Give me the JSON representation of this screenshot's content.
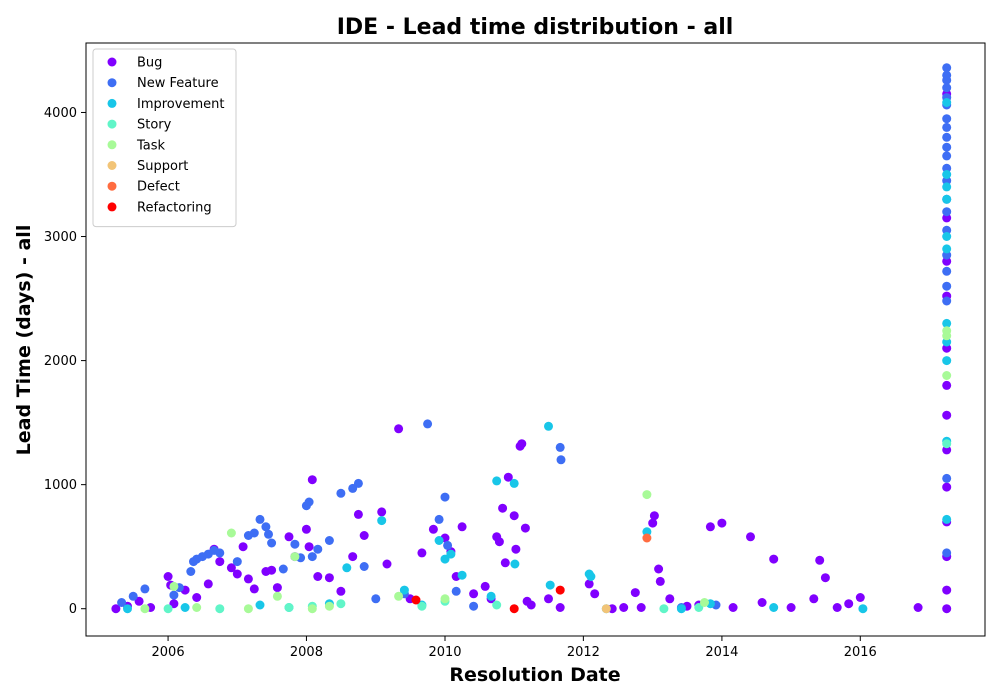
{
  "chart_data": {
    "type": "scatter",
    "title": "IDE - Lead time distribution - all",
    "xlabel": "Resolution Date",
    "ylabel": "Lead Time (days) - all",
    "xlim": [
      "2004-10-25",
      "2017-10-20"
    ],
    "ylim": [
      -220,
      4560
    ],
    "x_ticks": [
      "2006-01-01",
      "2008-01-01",
      "2010-01-01",
      "2012-01-01",
      "2014-01-01",
      "2016-01-01"
    ],
    "x_tick_labels": [
      "2006",
      "2008",
      "2010",
      "2012",
      "2014",
      "2016"
    ],
    "y_ticks": [
      0,
      1000,
      2000,
      3000,
      4000
    ],
    "y_tick_labels": [
      "0",
      "1000",
      "2000",
      "3000",
      "4000"
    ],
    "grid": false,
    "legend_position": "top-left",
    "series": [
      {
        "name": "Bug",
        "color": "#8000ff",
        "points": [
          [
            "2005-04-01",
            0
          ],
          [
            "2005-06-01",
            20
          ],
          [
            "2005-08-01",
            60
          ],
          [
            "2005-10-01",
            10
          ],
          [
            "2006-01-01",
            260
          ],
          [
            "2006-01-15",
            190
          ],
          [
            "2006-02-01",
            40
          ],
          [
            "2006-04-01",
            150
          ],
          [
            "2006-06-01",
            90
          ],
          [
            "2006-08-01",
            200
          ],
          [
            "2006-09-01",
            480
          ],
          [
            "2006-10-01",
            380
          ],
          [
            "2006-12-01",
            330
          ],
          [
            "2007-01-01",
            280
          ],
          [
            "2007-02-01",
            500
          ],
          [
            "2007-03-01",
            240
          ],
          [
            "2007-04-01",
            160
          ],
          [
            "2007-06-01",
            300
          ],
          [
            "2007-07-01",
            310
          ],
          [
            "2007-08-01",
            170
          ],
          [
            "2007-10-01",
            580
          ],
          [
            "2007-11-01",
            420
          ],
          [
            "2008-01-01",
            640
          ],
          [
            "2008-01-15",
            500
          ],
          [
            "2008-02-01",
            1040
          ],
          [
            "2008-03-01",
            260
          ],
          [
            "2008-05-01",
            250
          ],
          [
            "2008-07-01",
            140
          ],
          [
            "2008-09-01",
            420
          ],
          [
            "2008-10-01",
            760
          ],
          [
            "2008-11-01",
            590
          ],
          [
            "2009-02-01",
            780
          ],
          [
            "2009-03-01",
            360
          ],
          [
            "2009-05-01",
            1450
          ],
          [
            "2009-07-01",
            80
          ],
          [
            "2009-09-01",
            450
          ],
          [
            "2009-11-01",
            640
          ],
          [
            "2010-01-01",
            570
          ],
          [
            "2010-02-01",
            460
          ],
          [
            "2010-03-01",
            260
          ],
          [
            "2010-04-01",
            660
          ],
          [
            "2010-06-01",
            120
          ],
          [
            "2010-08-01",
            180
          ],
          [
            "2010-09-01",
            80
          ],
          [
            "2010-10-01",
            580
          ],
          [
            "2010-10-15",
            540
          ],
          [
            "2010-11-01",
            810
          ],
          [
            "2010-11-15",
            370
          ],
          [
            "2010-12-01",
            1060
          ],
          [
            "2011-01-01",
            750
          ],
          [
            "2011-01-10",
            480
          ],
          [
            "2011-02-01",
            1310
          ],
          [
            "2011-02-10",
            1330
          ],
          [
            "2011-03-01",
            650
          ],
          [
            "2011-03-10",
            60
          ],
          [
            "2011-04-01",
            30
          ],
          [
            "2011-07-01",
            80
          ],
          [
            "2011-09-01",
            10
          ],
          [
            "2012-02-01",
            200
          ],
          [
            "2012-03-01",
            120
          ],
          [
            "2012-06-01",
            0
          ],
          [
            "2012-08-01",
            10
          ],
          [
            "2012-10-01",
            130
          ],
          [
            "2012-11-01",
            10
          ],
          [
            "2013-01-01",
            690
          ],
          [
            "2013-01-10",
            750
          ],
          [
            "2013-02-01",
            320
          ],
          [
            "2013-02-10",
            220
          ],
          [
            "2013-04-01",
            80
          ],
          [
            "2013-07-01",
            20
          ],
          [
            "2013-09-01",
            30
          ],
          [
            "2013-11-01",
            660
          ],
          [
            "2014-01-01",
            690
          ],
          [
            "2014-03-01",
            10
          ],
          [
            "2014-06-01",
            580
          ],
          [
            "2014-08-01",
            50
          ],
          [
            "2014-10-01",
            400
          ],
          [
            "2015-01-01",
            10
          ],
          [
            "2015-05-01",
            80
          ],
          [
            "2015-06-01",
            390
          ],
          [
            "2015-07-01",
            250
          ],
          [
            "2015-09-01",
            10
          ],
          [
            "2015-11-01",
            40
          ],
          [
            "2016-01-01",
            90
          ],
          [
            "2016-11-01",
            10
          ],
          [
            "2017-04-01",
            0
          ],
          [
            "2017-04-01",
            150
          ],
          [
            "2017-04-01",
            420
          ],
          [
            "2017-04-01",
            700
          ],
          [
            "2017-04-01",
            980
          ],
          [
            "2017-04-01",
            1280
          ],
          [
            "2017-04-01",
            1560
          ],
          [
            "2017-04-01",
            1800
          ],
          [
            "2017-04-01",
            2100
          ],
          [
            "2017-04-01",
            2520
          ],
          [
            "2017-04-01",
            2800
          ],
          [
            "2017-04-01",
            3150
          ],
          [
            "2017-04-01",
            4150
          ]
        ]
      },
      {
        "name": "New Feature",
        "color": "#3e6ef4",
        "points": [
          [
            "2005-05-01",
            50
          ],
          [
            "2005-07-01",
            100
          ],
          [
            "2005-09-01",
            160
          ],
          [
            "2006-02-01",
            110
          ],
          [
            "2006-03-01",
            170
          ],
          [
            "2006-05-01",
            300
          ],
          [
            "2006-05-15",
            380
          ],
          [
            "2006-06-01",
            400
          ],
          [
            "2006-07-01",
            420
          ],
          [
            "2006-08-01",
            440
          ],
          [
            "2006-09-01",
            470
          ],
          [
            "2006-10-01",
            450
          ],
          [
            "2007-01-01",
            380
          ],
          [
            "2007-03-01",
            590
          ],
          [
            "2007-04-01",
            610
          ],
          [
            "2007-05-01",
            720
          ],
          [
            "2007-06-01",
            660
          ],
          [
            "2007-06-15",
            600
          ],
          [
            "2007-07-01",
            530
          ],
          [
            "2007-09-01",
            320
          ],
          [
            "2007-11-01",
            520
          ],
          [
            "2007-12-01",
            410
          ],
          [
            "2008-01-01",
            830
          ],
          [
            "2008-01-15",
            860
          ],
          [
            "2008-02-01",
            420
          ],
          [
            "2008-03-01",
            480
          ],
          [
            "2008-05-01",
            550
          ],
          [
            "2008-07-01",
            930
          ],
          [
            "2008-09-01",
            970
          ],
          [
            "2008-10-01",
            1010
          ],
          [
            "2008-11-01",
            340
          ],
          [
            "2009-01-01",
            80
          ],
          [
            "2009-06-01",
            120
          ],
          [
            "2009-10-01",
            1490
          ],
          [
            "2009-12-01",
            720
          ],
          [
            "2010-01-01",
            900
          ],
          [
            "2010-01-15",
            510
          ],
          [
            "2010-03-01",
            140
          ],
          [
            "2010-06-01",
            20
          ],
          [
            "2011-09-01",
            1300
          ],
          [
            "2011-09-05",
            1200
          ],
          [
            "2013-06-01",
            10
          ],
          [
            "2013-12-01",
            30
          ],
          [
            "2017-04-01",
            450
          ],
          [
            "2017-04-01",
            1050
          ],
          [
            "2017-04-01",
            2480
          ],
          [
            "2017-04-01",
            2600
          ],
          [
            "2017-04-01",
            2720
          ],
          [
            "2017-04-01",
            2850
          ],
          [
            "2017-04-01",
            3050
          ],
          [
            "2017-04-01",
            3200
          ],
          [
            "2017-04-01",
            3300
          ],
          [
            "2017-04-01",
            3450
          ],
          [
            "2017-04-01",
            3550
          ],
          [
            "2017-04-01",
            3650
          ],
          [
            "2017-04-01",
            3720
          ],
          [
            "2017-04-01",
            3800
          ],
          [
            "2017-04-01",
            3880
          ],
          [
            "2017-04-01",
            3950
          ],
          [
            "2017-04-01",
            4060
          ],
          [
            "2017-04-01",
            4120
          ],
          [
            "2017-04-01",
            4200
          ],
          [
            "2017-04-01",
            4260
          ],
          [
            "2017-04-01",
            4300
          ],
          [
            "2017-04-01",
            4360
          ]
        ]
      },
      {
        "name": "Improvement",
        "color": "#18c6e8",
        "points": [
          [
            "2005-06-01",
            0
          ],
          [
            "2006-04-01",
            10
          ],
          [
            "2007-05-01",
            30
          ],
          [
            "2007-10-01",
            10
          ],
          [
            "2008-05-01",
            40
          ],
          [
            "2008-08-01",
            330
          ],
          [
            "2009-02-01",
            710
          ],
          [
            "2009-06-01",
            150
          ],
          [
            "2009-09-01",
            30
          ],
          [
            "2009-12-01",
            550
          ],
          [
            "2010-01-01",
            400
          ],
          [
            "2010-02-01",
            440
          ],
          [
            "2010-04-01",
            270
          ],
          [
            "2010-09-01",
            100
          ],
          [
            "2010-10-01",
            1030
          ],
          [
            "2011-01-01",
            1010
          ],
          [
            "2011-01-05",
            360
          ],
          [
            "2011-07-01",
            1470
          ],
          [
            "2011-07-10",
            190
          ],
          [
            "2012-02-01",
            280
          ],
          [
            "2012-02-10",
            260
          ],
          [
            "2012-05-01",
            0
          ],
          [
            "2012-12-01",
            620
          ],
          [
            "2013-06-01",
            0
          ],
          [
            "2013-11-01",
            40
          ],
          [
            "2014-10-01",
            10
          ],
          [
            "2016-01-15",
            0
          ],
          [
            "2017-04-01",
            720
          ],
          [
            "2017-04-01",
            1350
          ],
          [
            "2017-04-01",
            2000
          ],
          [
            "2017-04-01",
            2150
          ],
          [
            "2017-04-01",
            2300
          ],
          [
            "2017-04-01",
            2900
          ],
          [
            "2017-04-01",
            3000
          ],
          [
            "2017-04-01",
            3300
          ],
          [
            "2017-04-01",
            3400
          ],
          [
            "2017-04-01",
            3500
          ],
          [
            "2017-04-01",
            4080
          ]
        ]
      },
      {
        "name": "Story",
        "color": "#61f5c8",
        "points": [
          [
            "2006-01-01",
            0
          ],
          [
            "2006-10-01",
            0
          ],
          [
            "2007-10-01",
            10
          ],
          [
            "2008-02-01",
            20
          ],
          [
            "2008-07-01",
            40
          ],
          [
            "2009-09-01",
            20
          ],
          [
            "2010-01-01",
            60
          ],
          [
            "2010-10-01",
            30
          ],
          [
            "2013-03-01",
            0
          ],
          [
            "2013-09-01",
            10
          ],
          [
            "2017-04-01",
            1330
          ]
        ]
      },
      {
        "name": "Task",
        "color": "#a8fa98",
        "points": [
          [
            "2005-09-01",
            0
          ],
          [
            "2006-02-01",
            180
          ],
          [
            "2006-06-01",
            10
          ],
          [
            "2006-12-01",
            610
          ],
          [
            "2007-03-01",
            0
          ],
          [
            "2007-08-01",
            100
          ],
          [
            "2007-11-01",
            420
          ],
          [
            "2008-02-01",
            0
          ],
          [
            "2008-05-01",
            20
          ],
          [
            "2009-05-01",
            100
          ],
          [
            "2010-01-01",
            80
          ],
          [
            "2012-12-01",
            920
          ],
          [
            "2013-10-01",
            50
          ],
          [
            "2017-04-01",
            1880
          ],
          [
            "2017-04-01",
            2200
          ],
          [
            "2017-04-01",
            2240
          ]
        ]
      },
      {
        "name": "Support",
        "color": "#f2c477",
        "points": [
          [
            "2012-05-01",
            0
          ]
        ]
      },
      {
        "name": "Defect",
        "color": "#ff6c40",
        "points": [
          [
            "2012-12-01",
            570
          ]
        ]
      },
      {
        "name": "Refactoring",
        "color": "#ff0000",
        "points": [
          [
            "2009-08-01",
            70
          ],
          [
            "2011-01-01",
            0
          ],
          [
            "2011-09-01",
            150
          ]
        ]
      }
    ]
  }
}
